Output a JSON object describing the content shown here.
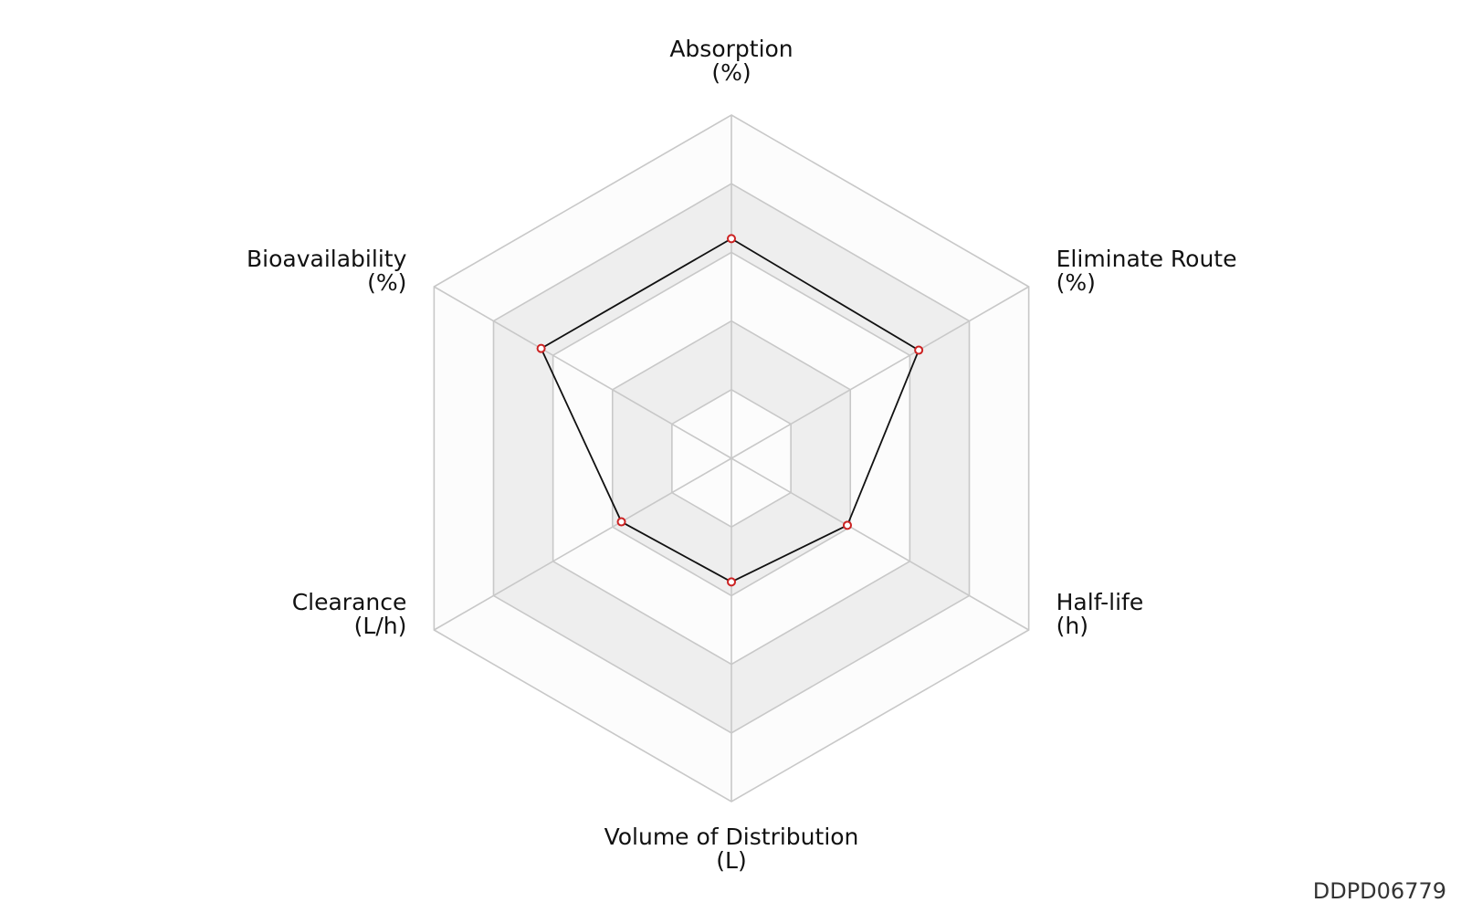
{
  "chart_data": {
    "type": "radar",
    "axes": [
      {
        "name": "Absorption",
        "unit": "(%)"
      },
      {
        "name": "Eliminate Route",
        "unit": "(%)"
      },
      {
        "name": "Half-life",
        "unit": "(h)"
      },
      {
        "name": "Volume of Distribution",
        "unit": "(L)"
      },
      {
        "name": "Clearance",
        "unit": "(L/h)"
      },
      {
        "name": "Bioavailability",
        "unit": "(%)"
      }
    ],
    "rings": 5,
    "range": [
      0,
      1
    ],
    "series": [
      {
        "values": [
          0.64,
          0.63,
          0.39,
          0.36,
          0.37,
          0.64
        ]
      }
    ],
    "colors": {
      "band_shaded": "#eeeeee",
      "band_light": "#fcfcfc",
      "grid": "#c8c8c8",
      "line": "#111111",
      "marker_edge": "#cc2222",
      "marker_fill": "#ffffff"
    }
  },
  "footer": {
    "code": "DDPD06779"
  }
}
